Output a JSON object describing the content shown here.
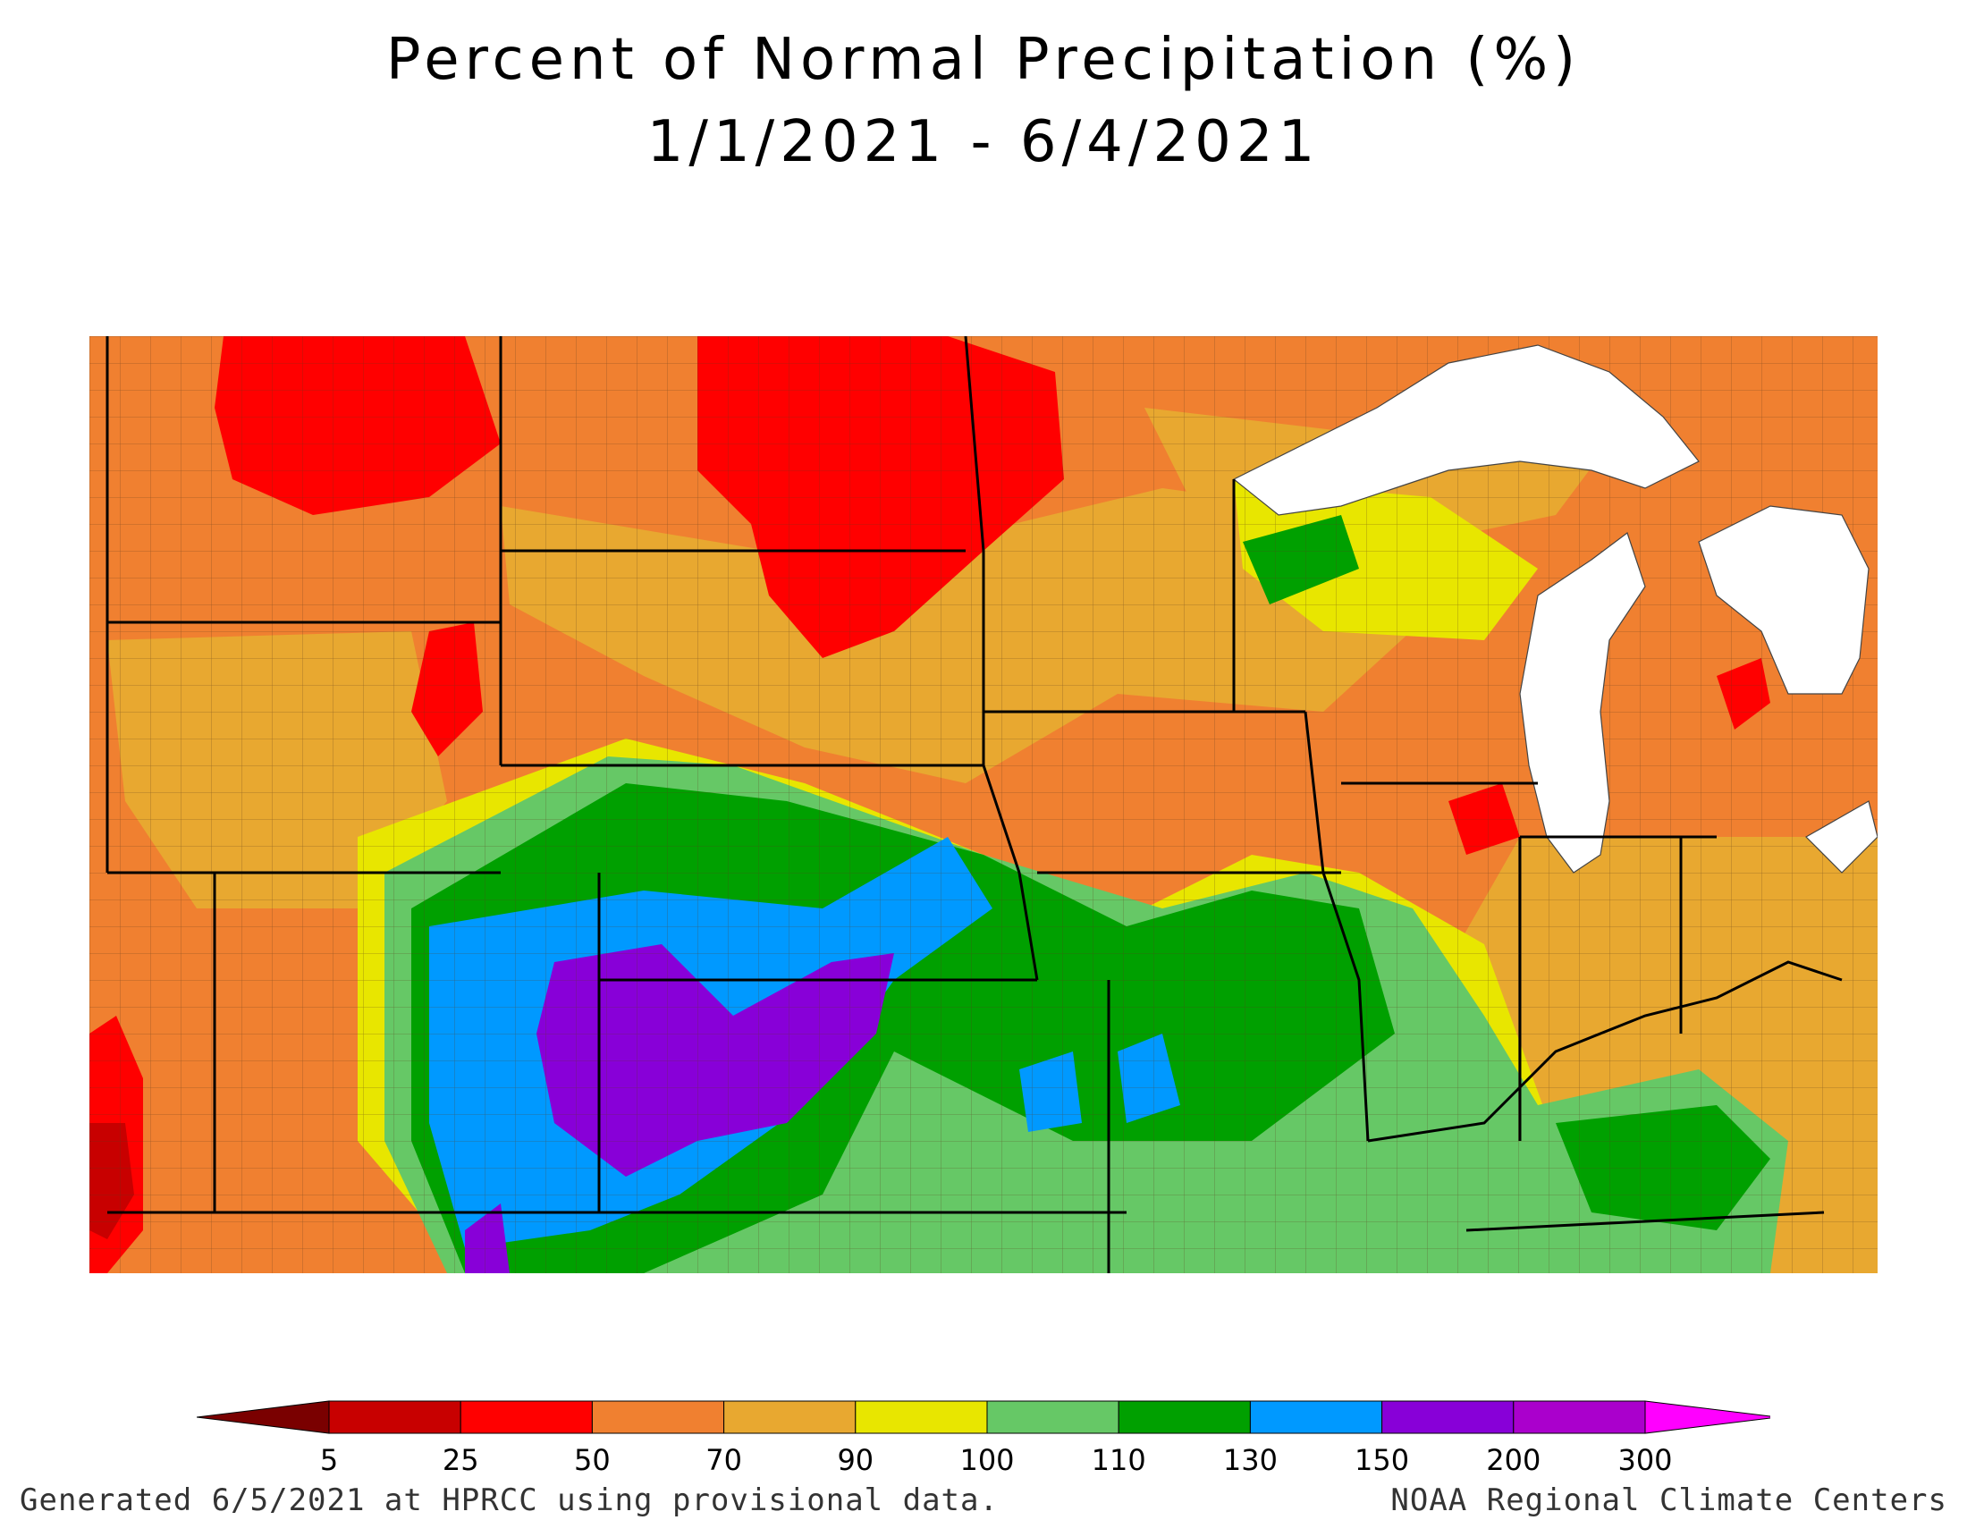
{
  "title": "Percent of Normal Precipitation (%)",
  "subtitle": "1/1/2021 - 6/4/2021",
  "legend": {
    "ticks": [
      "5",
      "25",
      "50",
      "70",
      "90",
      "100",
      "110",
      "130",
      "150",
      "200",
      "300"
    ],
    "colors": [
      "#7a0000",
      "#c80000",
      "#ff0000",
      "#f08030",
      "#e8a830",
      "#e8e600",
      "#66c866",
      "#00a000",
      "#0099ff",
      "#8800d8",
      "#aa00cc",
      "#ff00ff"
    ]
  },
  "footer": {
    "left": "Generated 6/5/2021 at HPRCC using provisional data.",
    "right": "NOAA Regional Climate Centers"
  }
}
